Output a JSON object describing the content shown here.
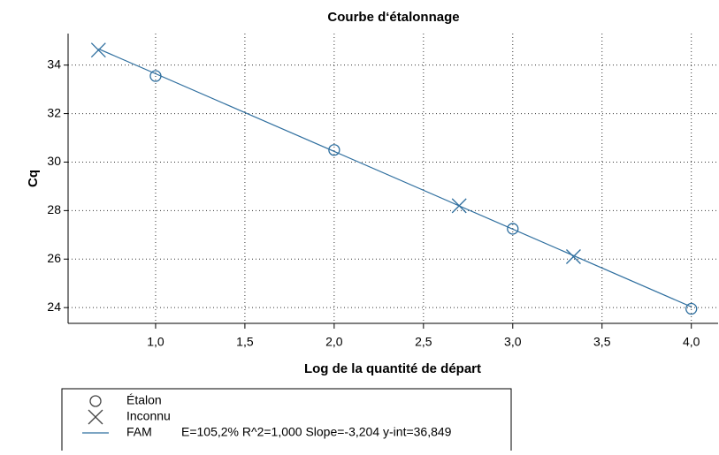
{
  "chart_data": {
    "type": "scatter",
    "title": "Courbe d‘étalonnage",
    "x_label": "Log de la quantité de départ",
    "y_label": "Cq",
    "xlim": [
      0.51,
      4.15
    ],
    "ylim": [
      23.35,
      35.3
    ],
    "xticks": [
      {
        "value": 1.0,
        "label": "1,0"
      },
      {
        "value": 1.5,
        "label": "1,5"
      },
      {
        "value": 2.0,
        "label": "2,0"
      },
      {
        "value": 2.5,
        "label": "2,5"
      },
      {
        "value": 3.0,
        "label": "3,0"
      },
      {
        "value": 3.5,
        "label": "3,5"
      },
      {
        "value": 4.0,
        "label": "4,0"
      }
    ],
    "yticks": [
      24,
      26,
      28,
      30,
      32,
      34
    ],
    "grid": true,
    "legend": "bottom-left",
    "series": [
      {
        "name": "Étalon",
        "marker": "circle",
        "color": "#2f6f9f",
        "x": [
          1.0,
          2.0,
          3.0,
          4.0
        ],
        "values": [
          33.55,
          30.5,
          27.25,
          23.95
        ]
      },
      {
        "name": "Inconnu",
        "marker": "x",
        "color": "#2f6f9f",
        "x": [
          0.68,
          2.7,
          3.34
        ],
        "values": [
          34.62,
          28.2,
          26.1
        ]
      },
      {
        "name": "FAM",
        "marker": "line",
        "color": "#2f6f9f",
        "x": [
          0.68,
          4.0
        ],
        "values": [
          34.67,
          24.03
        ],
        "annotation": "E=105,2% R^2=1,000 Slope=-3,204 y-int=36,849"
      }
    ]
  }
}
